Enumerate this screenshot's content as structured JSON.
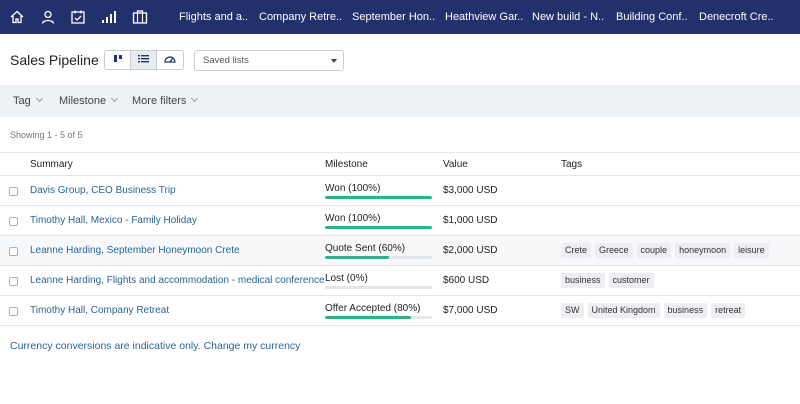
{
  "nav": {
    "icons": [
      "home-icon",
      "user-icon",
      "calendar-check-icon",
      "signal-bars-icon",
      "briefcase-icon"
    ],
    "tabs": [
      "Flights and a..",
      "Company Retre..",
      "September Hon..",
      "Heathview Gar..",
      "New build - N..",
      "Building Conf..",
      "Denecroft Cre.."
    ]
  },
  "header": {
    "title": "Sales Pipeline",
    "view_icons": [
      "board-view-icon",
      "list-view-icon",
      "dashboard-view-icon"
    ],
    "saved_lists": "Saved lists"
  },
  "filters": [
    "Tag",
    "Milestone",
    "More filters"
  ],
  "showing": "Showing 1 - 5 of 5",
  "columns": {
    "summary": "Summary",
    "milestone": "Milestone",
    "value": "Value",
    "tags": "Tags"
  },
  "rows": [
    {
      "summary": "Davis Group, CEO Business Trip",
      "milestone": "Won (100%)",
      "progress": 1.0,
      "value": "$3,000 USD",
      "tags": []
    },
    {
      "summary": "Timothy Hall, Mexico - Family Holiday",
      "milestone": "Won (100%)",
      "progress": 1.0,
      "value": "$1,000 USD",
      "tags": []
    },
    {
      "summary": "Leanne Harding, September Honeymoon Crete",
      "milestone": "Quote Sent (60%)",
      "progress": 0.6,
      "value": "$2,000 USD",
      "tags": [
        "Crete",
        "Greece",
        "couple",
        "honeymoon",
        "leisure"
      ]
    },
    {
      "summary": "Leanne Harding, Flights and accommodation - medical conference",
      "milestone": "Lost (0%)",
      "progress": 0.0,
      "value": "$600 USD",
      "tags": [
        "business",
        "customer"
      ]
    },
    {
      "summary": "Timothy Hall, Company Retreat",
      "milestone": "Offer Accepted (80%)",
      "progress": 0.8,
      "value": "$7,000 USD",
      "tags": [
        "SW",
        "United Kingdom",
        "business",
        "retreat"
      ]
    }
  ],
  "footer": {
    "note": "Currency conversions are indicative only.",
    "link": "Change my currency"
  },
  "colors": {
    "nav_bg": "#22316b",
    "link": "#2a6496",
    "progress": "#2bb38a",
    "filter_bg": "#eef1f5"
  }
}
